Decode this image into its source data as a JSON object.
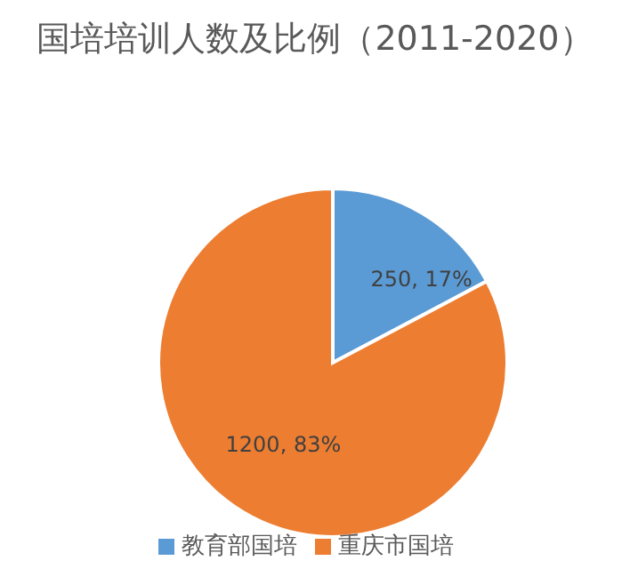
{
  "chart_data": {
    "type": "pie",
    "title": "国培培训人数及比例（2011-2020）",
    "categories": [
      "教育部国培",
      "重庆市国培"
    ],
    "values": [
      250,
      1200
    ],
    "colors": [
      "#5b9bd5",
      "#ed7d31"
    ],
    "value_labels": [
      "250, 17%",
      "1200, 83%"
    ],
    "legend": "bottom"
  }
}
